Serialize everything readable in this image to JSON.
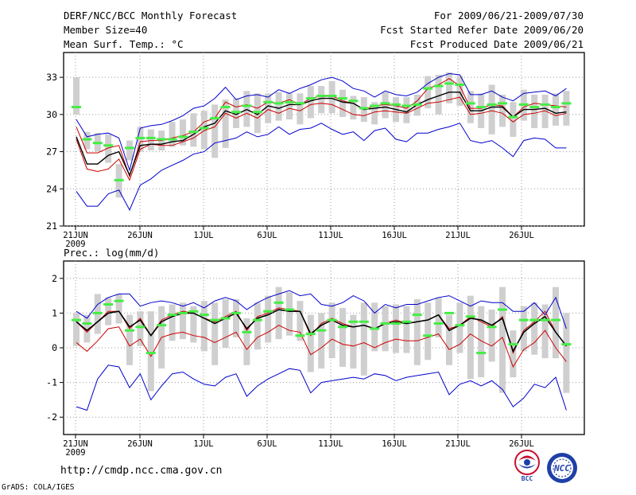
{
  "header": {
    "title": "DERF/NCC/BCC Monthly Forecast",
    "member_size": "Member Size=40",
    "variable": "Mean Surf. Temp.: °C",
    "period": "For 2009/06/21-2009/07/30",
    "start_ref": "Fcst Started Refer Date 2009/06/20",
    "produced": "Fcst Produced Date 2009/06/21"
  },
  "footer": {
    "url": "http://cmdp.ncc.cma.gov.cn",
    "credit": "GrADS: COLA/IGES",
    "logo_bcc": "BCC",
    "logo_ncc": "NCC"
  },
  "colors": {
    "max_line": "#0000cc",
    "min_line": "#0000cc",
    "upper_line": "#cc0000",
    "lower_line": "#cc0000",
    "mean_line": "#000000",
    "box": "#cfcfcf",
    "median_mark": "#44ee44",
    "grid": "#999999"
  },
  "chart_data": [
    {
      "type": "line",
      "title": "Mean Surf. Temp.: °C",
      "x_ticks": [
        "21JUN",
        "26JUN",
        "1JUL",
        "6JUL",
        "11JUL",
        "16JUL",
        "21JUL",
        "26JUL"
      ],
      "x_year": "2009",
      "ylim": [
        21,
        35
      ],
      "y_ticks": [
        21,
        24,
        27,
        30,
        33
      ],
      "series": [
        {
          "name": "max",
          "values": [
            29.6,
            28.2,
            28.4,
            28.5,
            28.1,
            25.5,
            28.9,
            29.1,
            29.2,
            29.5,
            29.9,
            30.5,
            30.7,
            31.3,
            32.2,
            31.2,
            31.5,
            31.6,
            31.4,
            32.0,
            31.7,
            32.1,
            32.4,
            32.8,
            33.0,
            32.7,
            32.1,
            31.9,
            31.4,
            31.9,
            31.6,
            31.5,
            31.8,
            32.5,
            33.0,
            33.3,
            33.2,
            31.6,
            31.6,
            31.9,
            31.4,
            31.1,
            31.7,
            31.8,
            31.9,
            31.5,
            32.1
          ]
        },
        {
          "name": "upper",
          "values": [
            29.0,
            26.9,
            26.9,
            27.3,
            27.5,
            25.0,
            27.8,
            27.9,
            27.9,
            28.1,
            28.3,
            28.6,
            29.4,
            29.7,
            31.0,
            30.6,
            30.8,
            30.5,
            31.0,
            30.9,
            31.2,
            30.8,
            31.3,
            31.5,
            31.5,
            31.1,
            30.9,
            30.4,
            30.7,
            30.8,
            30.7,
            30.5,
            31.1,
            32.1,
            32.4,
            32.9,
            32.3,
            30.5,
            30.5,
            30.8,
            30.7,
            29.8,
            30.6,
            30.9,
            30.8,
            30.7,
            30.6
          ]
        },
        {
          "name": "mean",
          "values": [
            28.2,
            26.0,
            26.0,
            26.7,
            27.0,
            25.1,
            27.5,
            27.6,
            27.6,
            27.8,
            27.9,
            28.4,
            29.0,
            29.3,
            30.3,
            30.0,
            30.4,
            30.0,
            30.7,
            30.5,
            30.8,
            30.8,
            31.1,
            31.3,
            31.3,
            31.0,
            30.9,
            30.4,
            30.5,
            30.6,
            30.4,
            30.2,
            30.8,
            31.2,
            31.5,
            31.8,
            31.8,
            30.3,
            30.3,
            30.6,
            30.6,
            29.8,
            30.4,
            30.4,
            30.5,
            30.1,
            30.2
          ]
        },
        {
          "name": "lower",
          "values": [
            28.0,
            25.6,
            25.4,
            25.6,
            26.4,
            24.7,
            27.2,
            27.6,
            27.5,
            27.5,
            27.8,
            28.1,
            28.7,
            29.0,
            30.1,
            29.7,
            30.1,
            29.7,
            30.4,
            30.1,
            30.5,
            30.3,
            30.8,
            30.9,
            30.8,
            30.4,
            30.0,
            29.9,
            30.2,
            30.3,
            30.2,
            30.1,
            30.5,
            30.9,
            31.0,
            31.2,
            31.4,
            30.0,
            30.1,
            30.3,
            30.1,
            29.4,
            30.0,
            30.1,
            30.3,
            29.9,
            30.1
          ]
        },
        {
          "name": "min",
          "values": [
            23.8,
            22.6,
            22.6,
            23.6,
            23.9,
            22.3,
            24.3,
            24.8,
            25.5,
            25.9,
            26.3,
            26.8,
            27.0,
            27.7,
            27.9,
            28.1,
            28.6,
            28.2,
            28.4,
            29.0,
            28.4,
            28.8,
            28.9,
            29.3,
            28.8,
            28.4,
            28.6,
            27.9,
            28.7,
            28.9,
            28.0,
            27.8,
            28.5,
            28.5,
            28.8,
            29.0,
            29.3,
            27.9,
            27.7,
            27.9,
            27.3,
            26.6,
            27.9,
            28.1,
            28.0,
            27.3,
            27.3
          ]
        }
      ],
      "median": [
        30.6,
        28.0,
        27.7,
        27.5,
        24.7,
        27.3,
        28.1,
        28.1,
        28.0,
        28.0,
        28.2,
        28.6,
        28.9,
        29.7,
        30.6,
        30.2,
        30.7,
        30.2,
        31.0,
        30.9,
        31.0,
        30.9,
        31.3,
        31.5,
        31.5,
        31.3,
        31.1,
        30.5,
        30.7,
        30.9,
        30.8,
        30.7,
        30.8,
        32.1,
        32.3,
        32.5,
        32.4,
        30.9,
        30.6,
        30.8,
        30.9,
        29.8,
        30.8,
        30.6,
        30.8,
        30.6,
        30.9
      ],
      "box_low": [
        30.0,
        27.2,
        27.0,
        26.1,
        23.3,
        26.3,
        27.0,
        27.1,
        27.1,
        27.4,
        27.5,
        27.4,
        27.2,
        26.5,
        27.3,
        28.9,
        29.0,
        28.5,
        29.3,
        29.5,
        29.6,
        29.2,
        29.7,
        30.1,
        30.1,
        29.8,
        29.6,
        29.4,
        29.2,
        29.7,
        29.4,
        29.3,
        29.9,
        30.5,
        30.0,
        30.9,
        30.7,
        29.3,
        28.9,
        28.4,
        29.0,
        28.2,
        29.5,
        28.9,
        28.9,
        29.1,
        29.1
      ],
      "box_high": [
        33.0,
        28.6,
        28.5,
        28.4,
        26.0,
        27.9,
        29.0,
        28.8,
        28.7,
        29.4,
        29.6,
        30.1,
        30.3,
        30.8,
        31.2,
        31.3,
        31.9,
        31.7,
        31.7,
        31.8,
        31.7,
        31.7,
        32.3,
        32.3,
        32.7,
        32.0,
        31.5,
        31.4,
        31.0,
        31.8,
        31.4,
        31.4,
        31.6,
        33.1,
        33.2,
        33.4,
        33.1,
        31.9,
        31.7,
        32.4,
        31.6,
        31.0,
        32.0,
        31.6,
        31.6,
        31.7,
        31.9
      ]
    },
    {
      "type": "line",
      "title": "Prec.: log(mm/d)",
      "x_ticks": [
        "21JUN",
        "26JUN",
        "1JUL",
        "6JUL",
        "11JUL",
        "16JUL",
        "21JUL",
        "26JUL"
      ],
      "x_year": "2009",
      "ylim": [
        -2.5,
        2.5
      ],
      "y_ticks": [
        -2,
        -1,
        0,
        1,
        2
      ],
      "series": [
        {
          "name": "max",
          "values": [
            1.05,
            0.85,
            1.25,
            1.45,
            1.55,
            1.55,
            1.2,
            1.3,
            1.35,
            1.3,
            1.2,
            1.3,
            1.15,
            1.35,
            1.45,
            1.35,
            1.1,
            1.3,
            1.45,
            1.55,
            1.65,
            1.5,
            1.55,
            1.25,
            1.2,
            1.3,
            1.5,
            1.35,
            1.0,
            1.25,
            1.15,
            1.25,
            1.25,
            1.35,
            1.45,
            1.5,
            1.35,
            1.2,
            1.35,
            1.3,
            1.3,
            1.05,
            1.05,
            1.3,
            0.95,
            1.45,
            0.55
          ]
        },
        {
          "name": "upper",
          "values": [
            0.75,
            0.45,
            0.75,
            1.05,
            1.05,
            0.55,
            0.85,
            0.35,
            0.8,
            0.95,
            1.05,
            1.0,
            0.85,
            0.75,
            0.9,
            1.05,
            0.5,
            0.9,
            1.0,
            1.15,
            1.1,
            1.05,
            0.35,
            0.7,
            0.85,
            0.7,
            0.6,
            0.65,
            0.55,
            0.7,
            0.8,
            0.7,
            0.75,
            0.8,
            0.95,
            0.55,
            0.65,
            0.9,
            0.75,
            0.6,
            0.9,
            -0.15,
            0.5,
            0.75,
            1.05,
            0.45,
            0.05
          ]
        },
        {
          "name": "mean",
          "values": [
            0.75,
            0.5,
            0.75,
            1.0,
            1.05,
            0.6,
            0.8,
            0.35,
            0.75,
            0.9,
            1.0,
            1.0,
            0.85,
            0.7,
            0.85,
            1.0,
            0.55,
            0.85,
            0.95,
            1.1,
            1.05,
            1.05,
            0.4,
            0.65,
            0.8,
            0.65,
            0.6,
            0.65,
            0.55,
            0.7,
            0.75,
            0.7,
            0.75,
            0.8,
            0.95,
            0.5,
            0.65,
            0.85,
            0.8,
            0.65,
            0.85,
            -0.1,
            0.45,
            0.7,
            0.9,
            0.45,
            0.05
          ]
        },
        {
          "name": "lower",
          "values": [
            0.15,
            -0.1,
            0.2,
            0.55,
            0.6,
            0.05,
            0.25,
            -0.25,
            0.3,
            0.4,
            0.45,
            0.35,
            0.3,
            0.15,
            0.3,
            0.45,
            -0.05,
            0.3,
            0.45,
            0.65,
            0.5,
            0.45,
            -0.2,
            0.0,
            0.25,
            0.1,
            0.05,
            0.15,
            0.0,
            0.15,
            0.25,
            0.2,
            0.2,
            0.3,
            0.4,
            -0.05,
            0.1,
            0.4,
            0.2,
            0.05,
            0.3,
            -0.55,
            -0.05,
            0.15,
            0.5,
            0.0,
            -0.4
          ]
        },
        {
          "name": "min",
          "values": [
            -1.7,
            -1.8,
            -0.9,
            -0.5,
            -0.55,
            -1.15,
            -0.75,
            -1.5,
            -1.1,
            -0.75,
            -0.7,
            -0.9,
            -1.05,
            -1.1,
            -0.85,
            -0.75,
            -1.4,
            -1.1,
            -0.9,
            -0.75,
            -0.6,
            -0.65,
            -1.3,
            -1.0,
            -0.95,
            -0.9,
            -0.85,
            -0.9,
            -0.75,
            -0.8,
            -0.95,
            -0.85,
            -0.8,
            -0.75,
            -0.7,
            -1.35,
            -1.05,
            -0.95,
            -1.1,
            -0.95,
            -1.2,
            -1.7,
            -1.45,
            -1.05,
            -1.15,
            -0.85,
            -1.8
          ]
        },
        {
          "name": "median_line",
          "values": [
            0.75,
            0.5,
            0.75,
            1.0,
            1.05,
            0.6,
            0.8,
            0.35,
            0.75,
            0.9,
            1.0,
            1.0,
            0.85,
            0.7,
            0.85,
            1.0,
            0.55,
            0.85,
            0.95,
            1.1,
            1.05,
            1.05,
            0.4,
            0.65,
            0.8,
            0.65,
            0.6,
            0.65,
            0.55,
            0.7,
            0.75,
            0.7,
            0.75,
            0.8,
            0.95,
            0.5,
            0.65,
            0.85,
            0.8,
            0.65,
            0.85,
            -0.1,
            0.45,
            0.7,
            0.9,
            0.45,
            0.05
          ]
        }
      ],
      "median": [
        0.8,
        0.7,
        1.0,
        1.25,
        1.35,
        0.5,
        0.6,
        -0.15,
        0.65,
        0.95,
        1.0,
        1.05,
        0.95,
        0.8,
        0.85,
        1.0,
        0.45,
        0.8,
        1.05,
        1.3,
        1.1,
        0.35,
        0.4,
        0.5,
        0.8,
        0.6,
        0.75,
        0.75,
        0.55,
        0.7,
        0.7,
        0.75,
        0.95,
        0.35,
        0.7,
        1.0,
        0.65,
        0.9,
        -0.15,
        0.6,
        1.1,
        0.1,
        0.8,
        0.8,
        0.8,
        0.8,
        0.1
      ],
      "box_low": [
        0.05,
        0.15,
        0.4,
        0.65,
        0.7,
        -0.5,
        0.05,
        -1.25,
        -0.6,
        0.2,
        0.25,
        0.15,
        -0.1,
        -0.5,
        0.0,
        0.3,
        -0.5,
        -0.05,
        0.15,
        0.25,
        0.35,
        0.2,
        -0.7,
        -0.6,
        -0.3,
        -0.55,
        -0.6,
        -0.8,
        -0.1,
        -0.1,
        -0.15,
        -0.15,
        -0.5,
        -0.35,
        0.3,
        -0.5,
        -0.15,
        -0.9,
        -0.85,
        -0.4,
        -1.3,
        -0.85,
        -0.1,
        -0.2,
        -0.3,
        -0.3,
        -1.3
      ],
      "box_high": [
        1.0,
        0.95,
        1.55,
        1.45,
        1.55,
        0.95,
        1.05,
        1.05,
        1.2,
        1.25,
        1.3,
        1.2,
        1.35,
        1.3,
        1.4,
        1.4,
        0.85,
        1.3,
        1.5,
        1.75,
        1.6,
        1.35,
        0.95,
        1.0,
        1.3,
        1.15,
        0.95,
        1.3,
        1.3,
        1.2,
        1.25,
        1.2,
        1.4,
        1.3,
        1.45,
        0.95,
        1.3,
        1.5,
        1.2,
        1.1,
        1.75,
        0.5,
        1.2,
        1.3,
        1.25,
        1.75,
        1.0
      ]
    }
  ]
}
